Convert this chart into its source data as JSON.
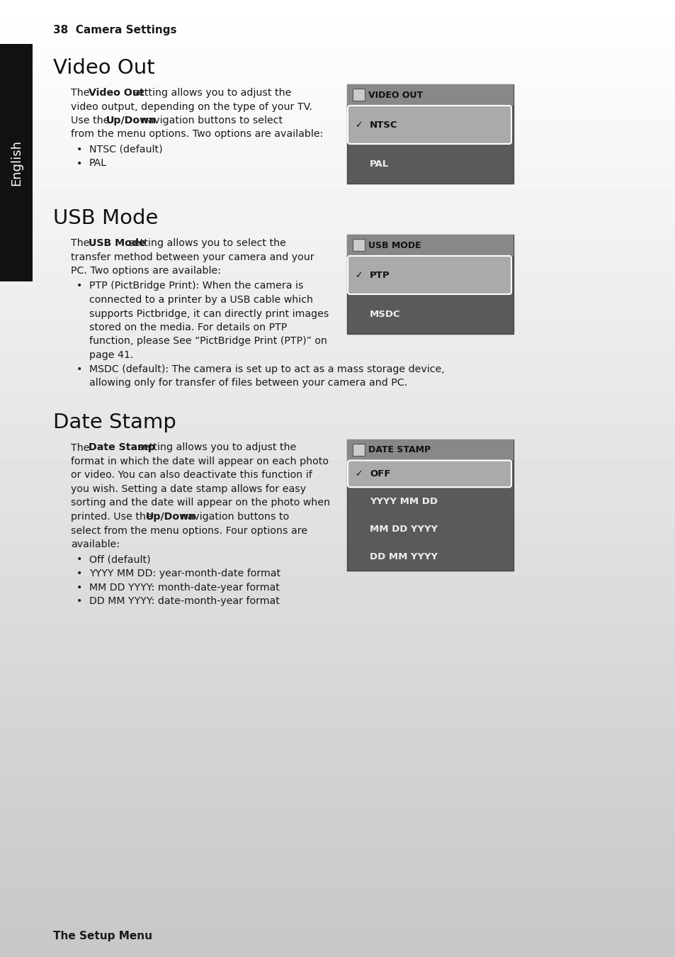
{
  "page_bg_top": "#ffffff",
  "page_bg_bottom": "#c8c8c8",
  "content_bg": "#f5f5f5",
  "sidebar_bg": "#111111",
  "sidebar_text": "English",
  "header_text": "38  Camera Settings",
  "footer_text": "The Setup Menu",
  "video_out_title": "Video Out",
  "video_out_para": [
    [
      "The ",
      false
    ],
    [
      "Video Out",
      true
    ],
    [
      " setting allows you to adjust the\nvideo output, depending on the type of your TV.\nUse the ",
      false
    ],
    [
      "Up/Down",
      true
    ],
    [
      " navigation buttons to select\nfrom the menu options. Two options are available:",
      false
    ]
  ],
  "video_out_bullets": [
    "NTSC (default)",
    "PAL"
  ],
  "video_out_menu_title": "VIDEO OUT",
  "video_out_menu_selected": "NTSC",
  "video_out_menu_items": [
    "NTSC",
    "PAL"
  ],
  "usb_title": "USB Mode",
  "usb_para": [
    [
      "The ",
      false
    ],
    [
      "USB Mode",
      true
    ],
    [
      " setting allows you to select the\ntransfer method between your camera and your\nPC. Two options are available:",
      false
    ]
  ],
  "usb_bullets": [
    "PTP (PictBridge Print): When the camera is\n    connected to a printer by a USB cable which\n    supports Pictbridge, it can directly print images\n    stored on the media. For details on PTP\n    function, please See “PictBridge Print (PTP)” on\n    page 41.",
    "MSDC (default): The camera is set up to act as a mass storage device,\n  allowing only for transfer of files between your camera and PC."
  ],
  "usb_menu_title": "USB MODE",
  "usb_menu_selected": "PTP",
  "usb_menu_items": [
    "PTP",
    "MSDC"
  ],
  "date_title": "Date Stamp",
  "date_para": [
    [
      "The ",
      false
    ],
    [
      "Date Stamp",
      true
    ],
    [
      " setting allows you to adjust the\nformat in which the date will appear on each photo\nor video. You can also deactivate this function if\nyou wish. Setting a date stamp allows for easy\nsorting and the date will appear on the photo when\nprinted. Use the ",
      false
    ],
    [
      "Up/Down",
      true
    ],
    [
      " navigation buttons to\nselect from the menu options. Four options are\navailable:",
      false
    ]
  ],
  "date_bullets": [
    "Off (default)",
    "YYYY MM DD: year-month-date format",
    "MM DD YYYY: month-date-year format",
    "DD MM YYYY: date-month-year format"
  ],
  "date_menu_title": "DATE STAMP",
  "date_menu_selected": "OFF",
  "date_menu_items": [
    "OFF",
    "YYYY MM DD",
    "MM DD YYYY",
    "DD MM YYYY"
  ]
}
